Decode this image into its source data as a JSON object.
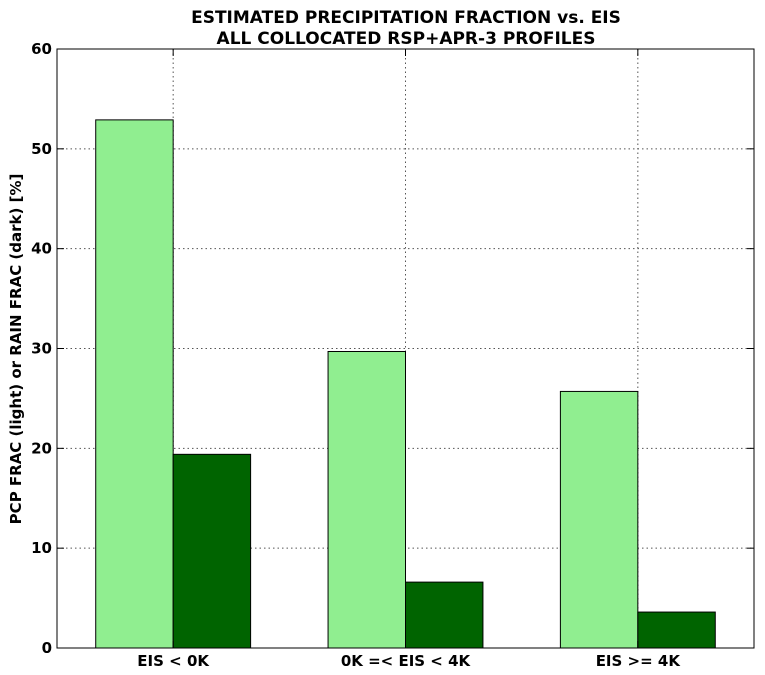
{
  "chart_data": {
    "type": "bar",
    "title": "ESTIMATED PRECIPITATION FRACTION vs. EIS",
    "subtitle": "ALL COLLOCATED RSP+APR-3 PROFILES",
    "xlabel": "",
    "ylabel": "PCP FRAC (light) or RAIN FRAC (dark) [%]",
    "categories": [
      "EIS < 0K",
      "0K =< EIS < 4K",
      "EIS >= 4K"
    ],
    "series": [
      {
        "values": [
          52.9,
          29.7,
          25.7
        ],
        "color": "#90ee90"
      },
      {
        "values": [
          19.4,
          6.6,
          3.6
        ],
        "color": "#006400"
      }
    ],
    "ylim": [
      0,
      60
    ],
    "yticks": [
      0,
      10,
      20,
      30,
      40,
      50,
      60
    ],
    "grid": true,
    "legend": "none"
  }
}
